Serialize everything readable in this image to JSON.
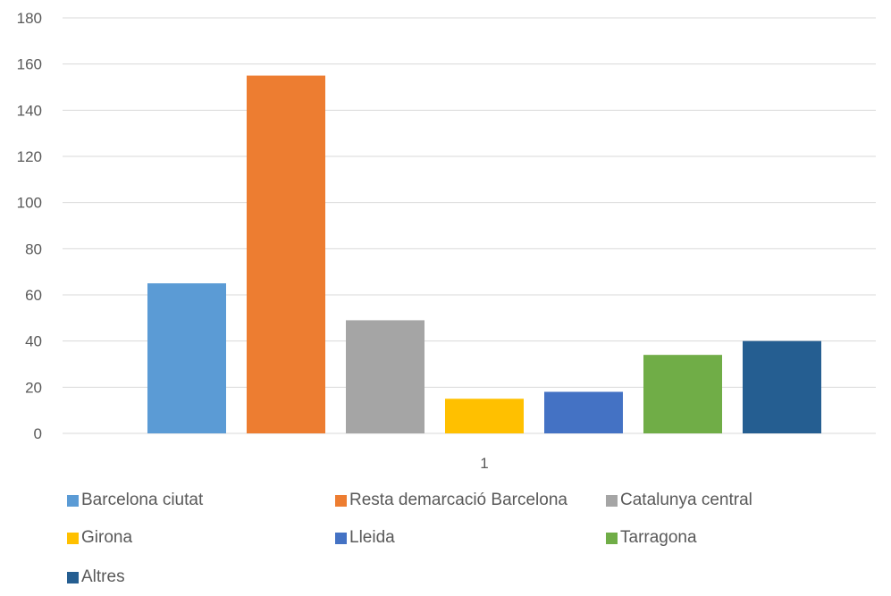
{
  "chart_data": {
    "type": "bar",
    "title": "",
    "xlabel": "",
    "ylabel": "",
    "categories": [
      "1"
    ],
    "ylim": [
      0,
      180
    ],
    "yticks": [
      0,
      20,
      40,
      60,
      80,
      100,
      120,
      140,
      160,
      180
    ],
    "grid": true,
    "legend_position": "bottom",
    "series": [
      {
        "name": "Barcelona ciutat",
        "values": [
          65
        ],
        "color": "#5B9BD5"
      },
      {
        "name": "Resta demarcació Barcelona",
        "values": [
          155
        ],
        "color": "#ED7D31"
      },
      {
        "name": "Catalunya central",
        "values": [
          49
        ],
        "color": "#A5A5A5"
      },
      {
        "name": "Girona",
        "values": [
          15
        ],
        "color": "#FFC000"
      },
      {
        "name": "Lleida",
        "values": [
          18
        ],
        "color": "#4472C4"
      },
      {
        "name": "Tarragona",
        "values": [
          34
        ],
        "color": "#70AD47"
      },
      {
        "name": "Altres",
        "values": [
          40
        ],
        "color": "#255E91"
      }
    ]
  }
}
